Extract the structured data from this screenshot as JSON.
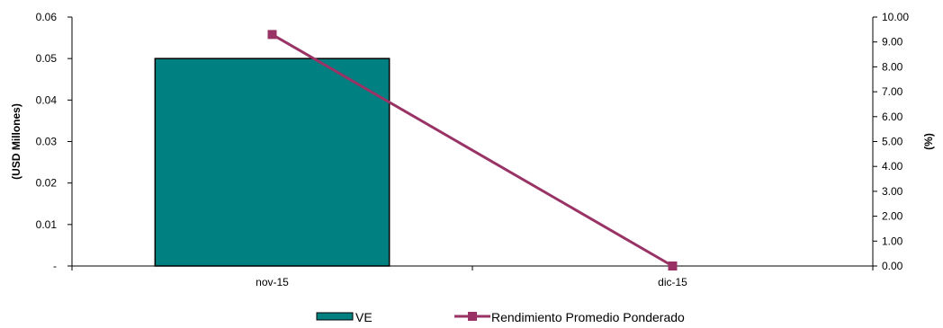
{
  "chart_data": {
    "type": "bar",
    "categories": [
      "nov-15",
      "dic-15"
    ],
    "series": [
      {
        "name": "VE",
        "type": "bar",
        "axis": "left",
        "color": "#008080",
        "values": [
          0.05,
          null
        ]
      },
      {
        "name": "Rendimiento Promedio Ponderado",
        "type": "line",
        "axis": "right",
        "color": "#993366",
        "values": [
          9.3,
          0.0
        ]
      }
    ],
    "y_left": {
      "label": "(USD Millones)",
      "range": [
        0,
        0.06
      ],
      "ticks": [
        "-",
        "0.01",
        "0.02",
        "0.03",
        "0.04",
        "0.05",
        "0.06"
      ]
    },
    "y_right": {
      "label": "(%)",
      "range": [
        0,
        10
      ],
      "ticks": [
        "0.00",
        "1.00",
        "2.00",
        "3.00",
        "4.00",
        "5.00",
        "6.00",
        "7.00",
        "8.00",
        "9.00",
        "10.00"
      ]
    },
    "grid": false,
    "legend_position": "bottom"
  }
}
